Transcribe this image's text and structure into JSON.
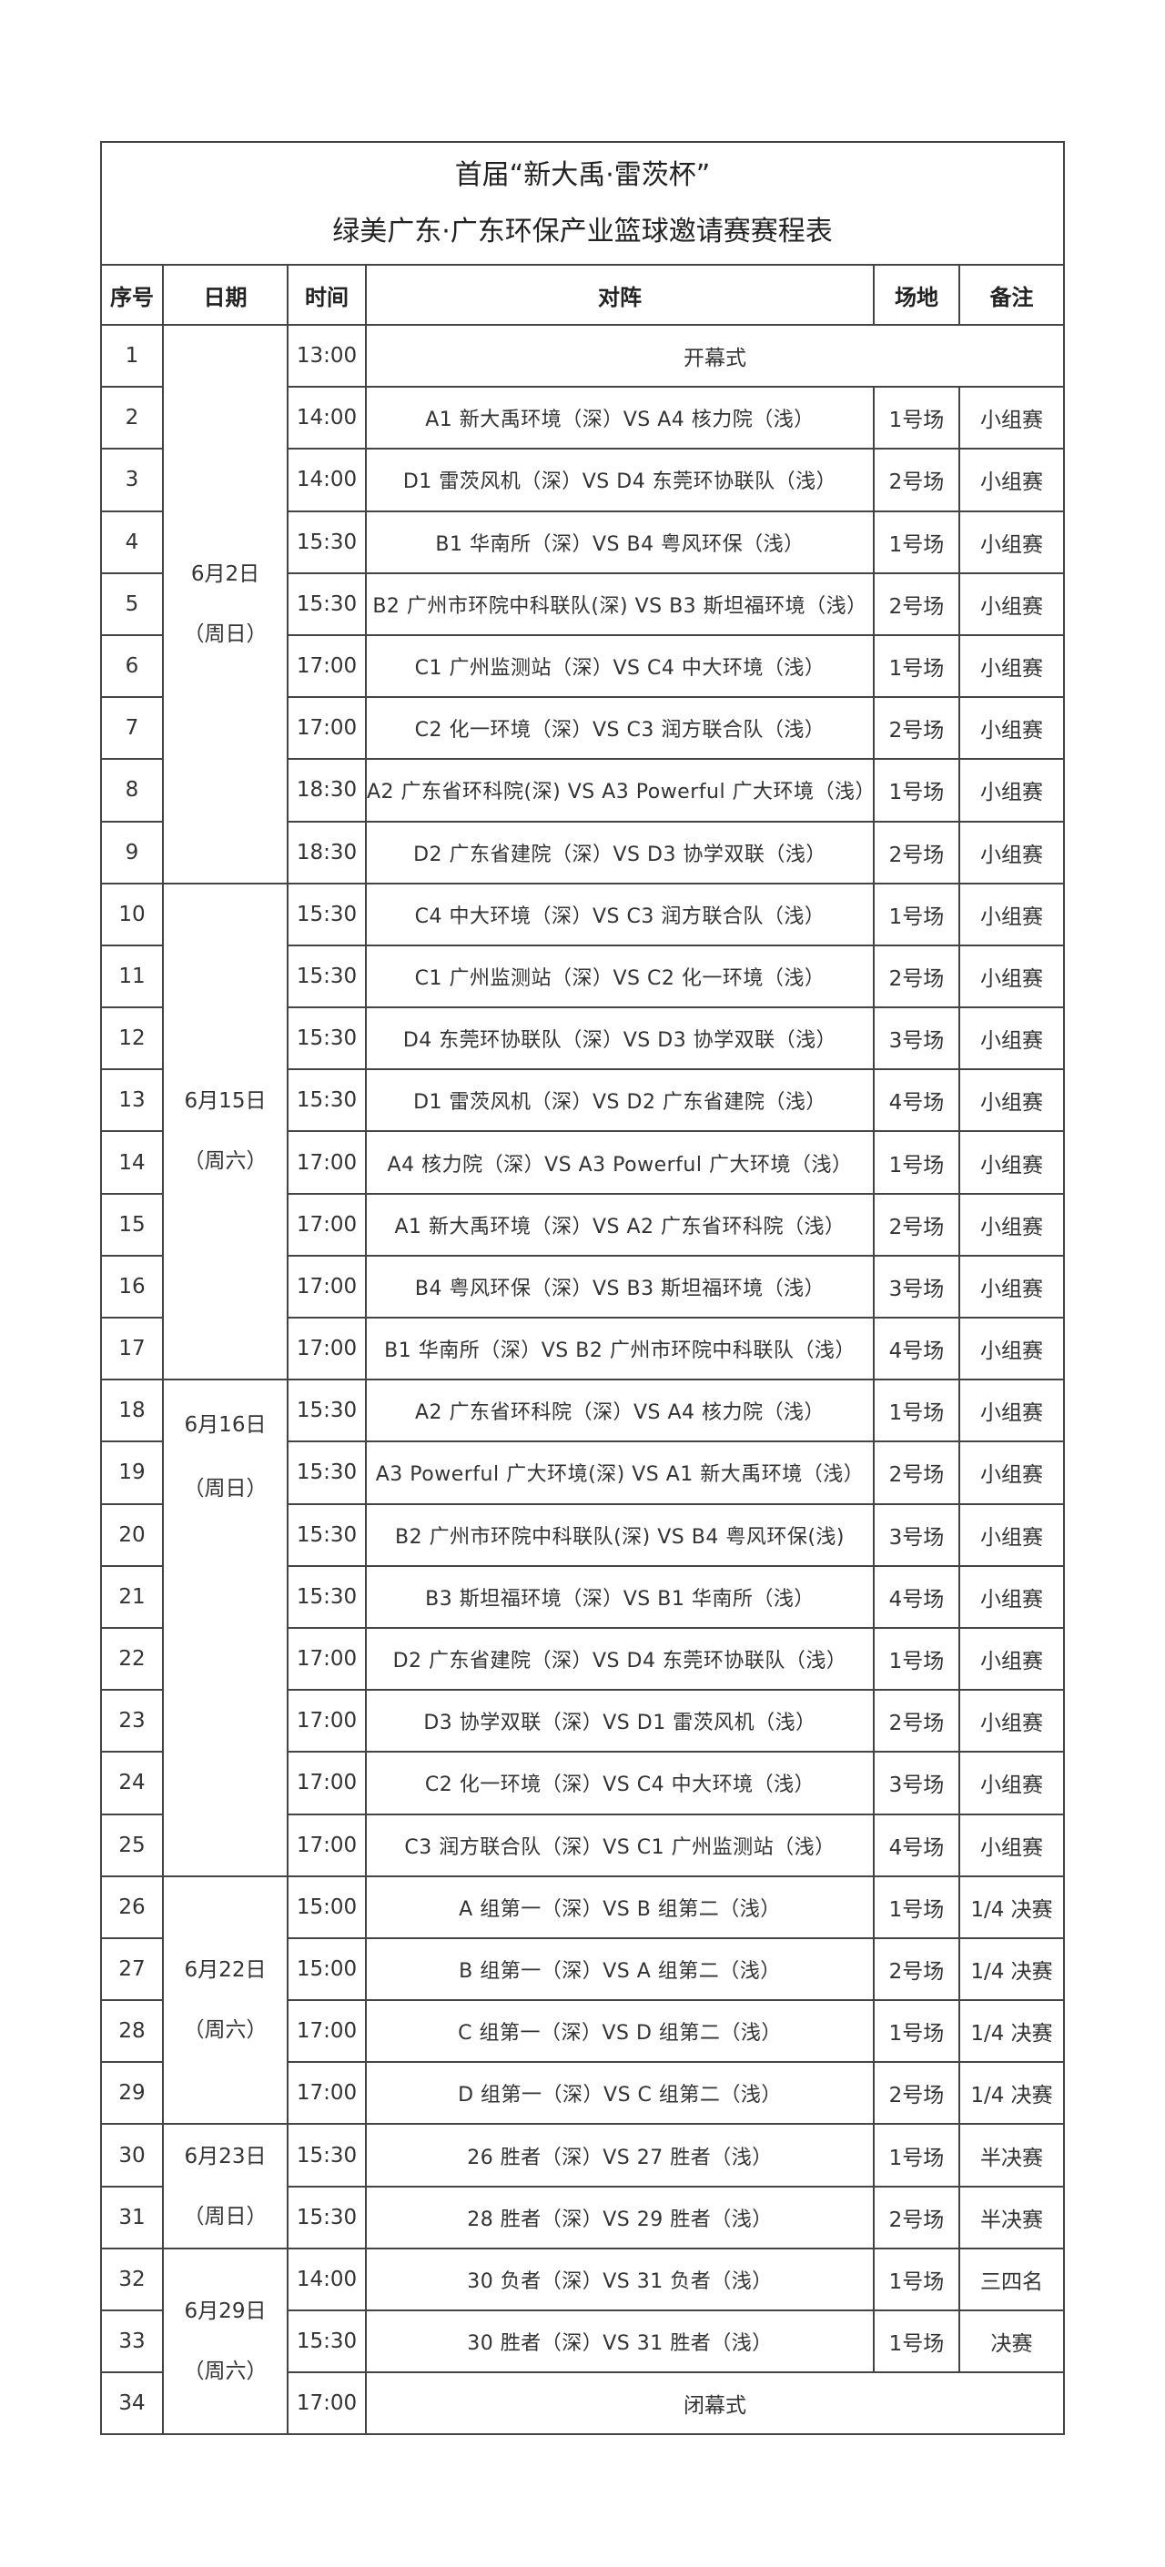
{
  "title": {
    "line1": "首届“新大禹·雷茨杯”",
    "line2": "绿美广东·广东环保产业篮球邀请赛赛程表"
  },
  "headers": [
    "序号",
    "日期",
    "时间",
    "对阵",
    "场地",
    "备注"
  ],
  "dates": [
    {
      "first_row": 1,
      "last_row": 9,
      "date": "6月2日",
      "weekday": "（周日）"
    },
    {
      "first_row": 10,
      "last_row": 17,
      "date": "6月15日",
      "weekday": "（周六）"
    },
    {
      "first_row": 18,
      "last_row": 25,
      "date": "6月16日",
      "weekday": "（周日）"
    },
    {
      "first_row": 26,
      "last_row": 29,
      "date": "6月22日",
      "weekday": "（周六）"
    },
    {
      "first_row": 30,
      "last_row": 31,
      "date": "6月23日",
      "weekday": "（周日）"
    },
    {
      "first_row": 32,
      "last_row": 34,
      "date": "6月29日",
      "weekday": "（周六）"
    }
  ],
  "rows": [
    {
      "no": "1",
      "time": "13:00",
      "matchup": "开幕式",
      "venue": "",
      "note": "",
      "ceremony": true
    },
    {
      "no": "2",
      "time": "14:00",
      "matchup": "A1 新大禹环境（深）VS A4 核力院（浅）",
      "venue": "1号场",
      "note": "小组赛"
    },
    {
      "no": "3",
      "time": "14:00",
      "matchup": "D1 雷茨风机（深）VS D4 东莞环协联队（浅）",
      "venue": "2号场",
      "note": "小组赛"
    },
    {
      "no": "4",
      "time": "15:30",
      "matchup": "B1 华南所（深）VS B4 粤风环保（浅）",
      "venue": "1号场",
      "note": "小组赛"
    },
    {
      "no": "5",
      "time": "15:30",
      "matchup": "B2 广州市环院中科联队(深) VS B3 斯坦福环境（浅）",
      "venue": "2号场",
      "note": "小组赛"
    },
    {
      "no": "6",
      "time": "17:00",
      "matchup": "C1 广州监测站（深）VS C4 中大环境（浅）",
      "venue": "1号场",
      "note": "小组赛"
    },
    {
      "no": "7",
      "time": "17:00",
      "matchup": "C2 化一环境（深）VS C3 润方联合队（浅）",
      "venue": "2号场",
      "note": "小组赛"
    },
    {
      "no": "8",
      "time": "18:30",
      "matchup": "A2 广东省环科院(深) VS A3 Powerful 广大环境（浅）",
      "venue": "1号场",
      "note": "小组赛"
    },
    {
      "no": "9",
      "time": "18:30",
      "matchup": "D2 广东省建院（深）VS D3 协学双联（浅）",
      "venue": "2号场",
      "note": "小组赛"
    },
    {
      "no": "10",
      "time": "15:30",
      "matchup": "C4 中大环境（深）VS C3 润方联合队（浅）",
      "venue": "1号场",
      "note": "小组赛"
    },
    {
      "no": "11",
      "time": "15:30",
      "matchup": "C1 广州监测站（深）VS C2 化一环境（浅）",
      "venue": "2号场",
      "note": "小组赛"
    },
    {
      "no": "12",
      "time": "15:30",
      "matchup": "D4 东莞环协联队（深）VS D3 协学双联（浅）",
      "venue": "3号场",
      "note": "小组赛"
    },
    {
      "no": "13",
      "time": "15:30",
      "matchup": "D1 雷茨风机（深）VS D2 广东省建院（浅）",
      "venue": "4号场",
      "note": "小组赛"
    },
    {
      "no": "14",
      "time": "17:00",
      "matchup": "A4 核力院（深）VS A3 Powerful 广大环境（浅）",
      "venue": "1号场",
      "note": "小组赛"
    },
    {
      "no": "15",
      "time": "17:00",
      "matchup": "A1 新大禹环境（深）VS A2 广东省环科院（浅）",
      "venue": "2号场",
      "note": "小组赛"
    },
    {
      "no": "16",
      "time": "17:00",
      "matchup": "B4 粤风环保（深）VS B3 斯坦福环境（浅）",
      "venue": "3号场",
      "note": "小组赛"
    },
    {
      "no": "17",
      "time": "17:00",
      "matchup": "B1 华南所（深）VS B2 广州市环院中科联队（浅）",
      "venue": "4号场",
      "note": "小组赛"
    },
    {
      "no": "18",
      "time": "15:30",
      "matchup": "A2 广东省环科院（深）VS A4 核力院（浅）",
      "venue": "1号场",
      "note": "小组赛"
    },
    {
      "no": "19",
      "time": "15:30",
      "matchup": "A3 Powerful 广大环境(深) VS A1 新大禹环境（浅）",
      "venue": "2号场",
      "note": "小组赛"
    },
    {
      "no": "20",
      "time": "15:30",
      "matchup": "B2 广州市环院中科联队(深) VS B4 粤风环保(浅)",
      "venue": "3号场",
      "note": "小组赛"
    },
    {
      "no": "21",
      "time": "15:30",
      "matchup": "B3 斯坦福环境（深）VS B1 华南所（浅）",
      "venue": "4号场",
      "note": "小组赛"
    },
    {
      "no": "22",
      "time": "17:00",
      "matchup": "D2 广东省建院（深）VS D4 东莞环协联队（浅）",
      "venue": "1号场",
      "note": "小组赛"
    },
    {
      "no": "23",
      "time": "17:00",
      "matchup": "D3 协学双联（深）VS D1 雷茨风机（浅）",
      "venue": "2号场",
      "note": "小组赛"
    },
    {
      "no": "24",
      "time": "17:00",
      "matchup": "C2 化一环境（深）VS C4 中大环境（浅）",
      "venue": "3号场",
      "note": "小组赛"
    },
    {
      "no": "25",
      "time": "17:00",
      "matchup": "C3 润方联合队（深）VS C1 广州监测站（浅）",
      "venue": "4号场",
      "note": "小组赛"
    },
    {
      "no": "26",
      "time": "15:00",
      "matchup": "A 组第一（深）VS B 组第二（浅）",
      "venue": "1号场",
      "note": "1/4 决赛"
    },
    {
      "no": "27",
      "time": "15:00",
      "matchup": "B 组第一（深）VS A 组第二（浅）",
      "venue": "2号场",
      "note": "1/4 决赛"
    },
    {
      "no": "28",
      "time": "17:00",
      "matchup": "C 组第一（深）VS D 组第二（浅）",
      "venue": "1号场",
      "note": "1/4 决赛"
    },
    {
      "no": "29",
      "time": "17:00",
      "matchup": "D 组第一（深）VS C 组第二（浅）",
      "venue": "2号场",
      "note": "1/4 决赛"
    },
    {
      "no": "30",
      "time": "15:30",
      "matchup": "26 胜者（深）VS 27 胜者（浅）",
      "venue": "1号场",
      "note": "半决赛"
    },
    {
      "no": "31",
      "time": "15:30",
      "matchup": "28 胜者（深）VS 29 胜者（浅）",
      "venue": "2号场",
      "note": "半决赛"
    },
    {
      "no": "32",
      "time": "14:00",
      "matchup": "30 负者（深）VS 31 负者（浅）",
      "venue": "1号场",
      "note": "三四名"
    },
    {
      "no": "33",
      "time": "15:30",
      "matchup": "30 胜者（深）VS 31 胜者（浅）",
      "venue": "1号场",
      "note": "决赛"
    },
    {
      "no": "34",
      "time": "17:00",
      "matchup": "闭幕式",
      "venue": "",
      "note": "",
      "ceremony": true
    }
  ]
}
